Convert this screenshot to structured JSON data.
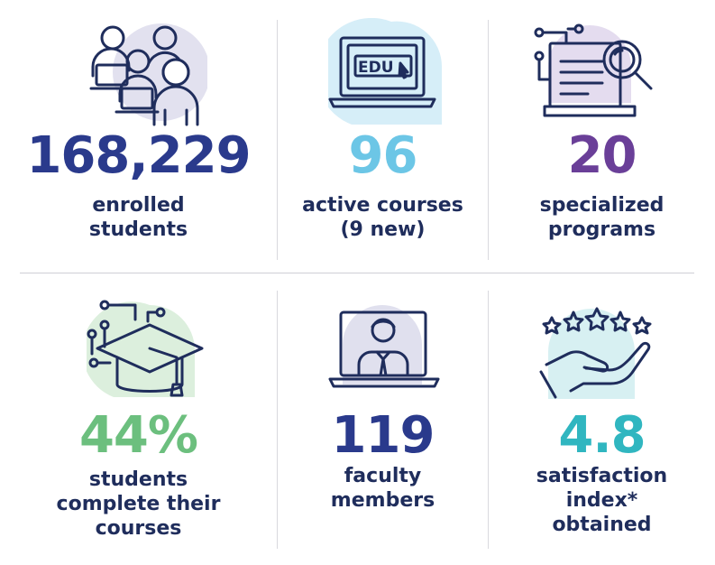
{
  "colors": {
    "navy": "#2a3a8c",
    "sky": "#6cc6e6",
    "purple": "#6a3f98",
    "green": "#6cbf7e",
    "teal": "#30b6c0",
    "line": "#1f2d5c"
  },
  "stats": [
    {
      "number": "168,229",
      "label_lines": [
        "enrolled",
        "students"
      ],
      "icon": "students-icon",
      "color": "navy"
    },
    {
      "number": "96",
      "label_lines": [
        "active courses",
        "(9 new)"
      ],
      "icon": "laptop-edu-icon",
      "color": "sky"
    },
    {
      "number": "20",
      "label_lines": [
        "specialized",
        "programs"
      ],
      "icon": "search-document-icon",
      "color": "purple"
    },
    {
      "number": "44%",
      "label_lines": [
        "students",
        "complete their",
        "courses"
      ],
      "icon": "graduation-cap-icon",
      "color": "green"
    },
    {
      "number": "119",
      "label_lines": [
        "faculty",
        "members"
      ],
      "icon": "teacher-laptop-icon",
      "color": "navy"
    },
    {
      "number": "4.8",
      "label_lines": [
        "satisfaction",
        "index*",
        "obtained"
      ],
      "icon": "rating-hand-icon",
      "color": "teal"
    }
  ],
  "laptop_screen_text": "EDU"
}
